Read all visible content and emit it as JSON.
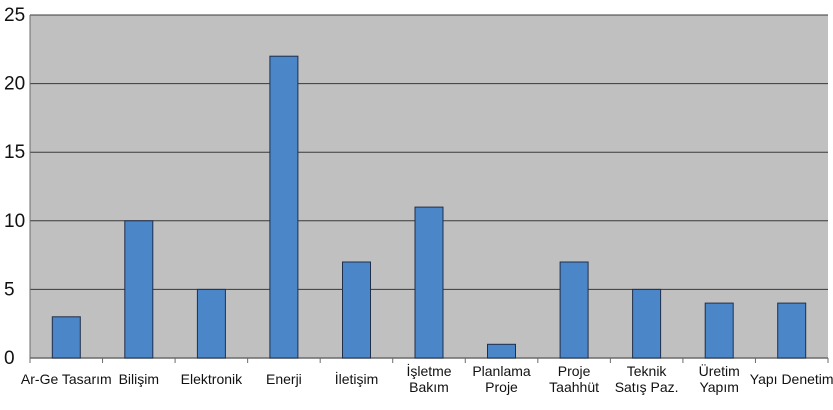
{
  "chart_data": {
    "type": "bar",
    "title": "",
    "xlabel": "",
    "ylabel": "",
    "categories": [
      [
        "Ar-Ge Tasarım"
      ],
      [
        "Bilişim"
      ],
      [
        "Elektronik"
      ],
      [
        "Enerji"
      ],
      [
        "İletişim"
      ],
      [
        "İşletme",
        "Bakım"
      ],
      [
        "Planlama",
        "Proje"
      ],
      [
        "Proje",
        "Taahhüt"
      ],
      [
        "Teknik",
        "Satış Paz."
      ],
      [
        "Üretim",
        "Yapım"
      ],
      [
        "Yapı Denetim"
      ]
    ],
    "values": [
      3,
      10,
      5,
      22,
      7,
      11,
      1,
      7,
      5,
      4,
      4
    ],
    "ylim": [
      0,
      25
    ],
    "yticks": [
      0,
      5,
      10,
      15,
      20,
      25
    ],
    "grid": true,
    "legend": false,
    "colors": {
      "plot_bg": "#c0c0c0",
      "bar_fill": "#4a86c8",
      "bar_stroke": "#1f2f4a",
      "grid": "#3a3a3a",
      "axis": "#6b6b6b"
    }
  }
}
